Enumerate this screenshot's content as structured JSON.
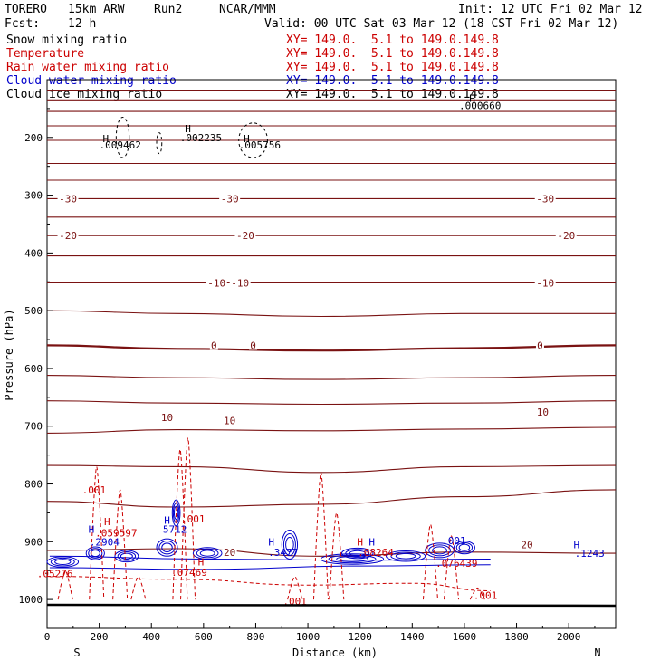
{
  "header": {
    "model": "TORERO",
    "grid": "15km ARW",
    "run": "Run2",
    "org": "NCAR/MMM",
    "init": "Init: 12 UTC Fri 02 Mar 12",
    "fcst_label": "Fcst:",
    "fcst_value": "12 h",
    "valid": "Valid: 00 UTC Sat 03 Mar 12 (18 CST Fri 02 Mar 12)"
  },
  "fields": [
    {
      "name": "Snow mixing ratio",
      "spec": "XY= 149.0.  5.1 to 149.0.149.8",
      "color": "#000000"
    },
    {
      "name": "Temperature",
      "spec": "XY= 149.0.  5.1 to 149.0.149.8",
      "color": "#cc0000"
    },
    {
      "name": "Rain water mixing ratio",
      "spec": "XY= 149.0.  5.1 to 149.0.149.8",
      "color": "#cc0000"
    },
    {
      "name": "Cloud water mixing ratio",
      "spec": "XY= 149.0.  5.1 to 149.0.149.8",
      "color": "#0000cc"
    },
    {
      "name": "Cloud ice mixing ratio",
      "spec": "XY= 149.0.  5.1 to 149.0.149.8",
      "color": "#000000"
    }
  ],
  "chart_data": {
    "type": "cross-section",
    "xlabel": "Distance (km)",
    "ylabel": "Pressure (hPa)",
    "xlim": [
      0,
      2180
    ],
    "ylim": [
      1050,
      100
    ],
    "x_ticks": [
      0,
      200,
      400,
      600,
      800,
      1000,
      1200,
      1400,
      1600,
      1800,
      2000
    ],
    "y_ticks": [
      200,
      300,
      400,
      500,
      600,
      700,
      800,
      900,
      1000
    ],
    "endpoints": {
      "left": "S",
      "right": "N"
    },
    "temperature_isotherms": [
      {
        "pressures": [
          118,
          118,
          118,
          118,
          118
        ],
        "label": ""
      },
      {
        "pressures": [
          135,
          135,
          135,
          135,
          135
        ],
        "label": ""
      },
      {
        "pressures": [
          155,
          155,
          155,
          155,
          155
        ],
        "label": ""
      },
      {
        "pressures": [
          180,
          180,
          180,
          180,
          180
        ],
        "label": ""
      },
      {
        "pressures": [
          205,
          205,
          205,
          205,
          205
        ],
        "label": ""
      },
      {
        "pressures": [
          245,
          245,
          245,
          245,
          245
        ],
        "label": ""
      },
      {
        "pressures": [
          274,
          274,
          274,
          274,
          274
        ],
        "label": ""
      },
      {
        "pressures": [
          306,
          306,
          306,
          306,
          306
        ],
        "label": "-30"
      },
      {
        "pressures": [
          338,
          338,
          338,
          338,
          338
        ],
        "label": ""
      },
      {
        "pressures": [
          370,
          370,
          370,
          370,
          370
        ],
        "label": "-20"
      },
      {
        "pressures": [
          405,
          405,
          405,
          405,
          405
        ],
        "label": ""
      },
      {
        "pressures": [
          452,
          452,
          452,
          452,
          452
        ],
        "label": "-10"
      },
      {
        "pressures": [
          500,
          505,
          510,
          505,
          505
        ],
        "label": ""
      },
      {
        "pressures": [
          560,
          566,
          569,
          565,
          560
        ],
        "label": "0"
      },
      {
        "pressures": [
          612,
          616,
          619,
          616,
          612
        ],
        "label": ""
      },
      {
        "pressures": [
          656,
          660,
          662,
          660,
          656
        ],
        "label": "10"
      },
      {
        "pressures": [
          712,
          706,
          708,
          705,
          702
        ],
        "label": ""
      },
      {
        "pressures": [
          768,
          770,
          780,
          770,
          768
        ],
        "label": ""
      },
      {
        "pressures": [
          830,
          840,
          835,
          822,
          810
        ],
        "label": ""
      },
      {
        "pressures": [
          915,
          912,
          925,
          918,
          920
        ],
        "label": "20"
      }
    ],
    "isotherm_x": [
      0,
      500,
      1050,
      1600,
      2180
    ],
    "temperature_labels": [
      {
        "text": "-30",
        "x": 80,
        "p": 306
      },
      {
        "text": "-30",
        "x": 700,
        "p": 306
      },
      {
        "text": "-30",
        "x": 1910,
        "p": 306
      },
      {
        "text": "-20",
        "x": 80,
        "p": 370
      },
      {
        "text": "-20",
        "x": 760,
        "p": 370
      },
      {
        "text": "-20",
        "x": 1990,
        "p": 370
      },
      {
        "text": "-10",
        "x": 650,
        "p": 452
      },
      {
        "text": "-10",
        "x": 740,
        "p": 452
      },
      {
        "text": "-10",
        "x": 1910,
        "p": 452
      },
      {
        "text": "0",
        "x": 640,
        "p": 560
      },
      {
        "text": "0",
        "x": 790,
        "p": 560
      },
      {
        "text": "0",
        "x": 1890,
        "p": 560
      },
      {
        "text": "10",
        "x": 460,
        "p": 685
      },
      {
        "text": "10",
        "x": 700,
        "p": 690
      },
      {
        "text": "10",
        "x": 1900,
        "p": 675
      },
      {
        "text": "20",
        "x": 700,
        "p": 918
      },
      {
        "text": "20",
        "x": 1840,
        "p": 905
      }
    ],
    "extrema_labels": [
      {
        "text": "H",
        "x": 225,
        "p": 202,
        "color": "#000000"
      },
      {
        "text": ".009462",
        "x": 280,
        "p": 213,
        "color": "#000000"
      },
      {
        "text": "H",
        "x": 540,
        "p": 185,
        "color": "#000000"
      },
      {
        "text": ".002235",
        "x": 590,
        "p": 200,
        "color": "#000000"
      },
      {
        "text": "H",
        "x": 765,
        "p": 202,
        "color": "#000000"
      },
      {
        "text": ".005756",
        "x": 815,
        "p": 213,
        "color": "#000000"
      },
      {
        "text": "H",
        "x": 170,
        "p": 878,
        "color": "#0000cc"
      },
      {
        "text": ".2904",
        "x": 220,
        "p": 900,
        "color": "#0000cc"
      },
      {
        "text": "H",
        "x": 460,
        "p": 863,
        "color": "#0000cc"
      },
      {
        "text": "5712",
        "x": 490,
        "p": 878,
        "color": "#0000cc"
      },
      {
        "text": "H",
        "x": 860,
        "p": 900,
        "color": "#0000cc"
      },
      {
        "text": ".3477",
        "x": 905,
        "p": 918,
        "color": "#0000cc"
      },
      {
        "text": "H",
        "x": 1245,
        "p": 900,
        "color": "#0000cc"
      },
      {
        "text": "H",
        "x": 2030,
        "p": 905,
        "color": "#0000cc"
      },
      {
        "text": ".1243",
        "x": 2080,
        "p": 920,
        "color": "#0000cc"
      },
      {
        "text": ".001",
        "x": 180,
        "p": 810,
        "color": "#cc0000"
      },
      {
        "text": "H",
        "x": 230,
        "p": 865,
        "color": "#cc0000"
      },
      {
        "text": ".059597",
        "x": 265,
        "p": 885,
        "color": "#cc0000"
      },
      {
        "text": ".001",
        "x": 560,
        "p": 860,
        "color": "#cc0000"
      },
      {
        "text": "H",
        "x": 590,
        "p": 935,
        "color": "#cc0000"
      },
      {
        "text": ".07469",
        "x": 545,
        "p": 953,
        "color": "#cc0000"
      },
      {
        "text": ".05276",
        "x": 30,
        "p": 955,
        "color": "#cc0000"
      },
      {
        "text": "H",
        "x": 1200,
        "p": 900,
        "color": "#cc0000"
      },
      {
        "text": ".08264",
        "x": 1260,
        "p": 918,
        "color": "#cc0000"
      },
      {
        "text": ".001",
        "x": 950,
        "p": 1003,
        "color": "#cc0000"
      },
      {
        "text": ".076439",
        "x": 1570,
        "p": 937,
        "color": "#cc0000"
      },
      {
        "text": ".001",
        "x": 1560,
        "p": 898,
        "color": "#0000cc"
      },
      {
        "text": ".001",
        "x": 1680,
        "p": 993,
        "color": "#cc0000"
      },
      {
        "text": "H",
        "x": 1630,
        "p": 132,
        "color": "#000000"
      },
      {
        "text": ".000660",
        "x": 1660,
        "p": 145,
        "color": "#000000"
      }
    ]
  }
}
